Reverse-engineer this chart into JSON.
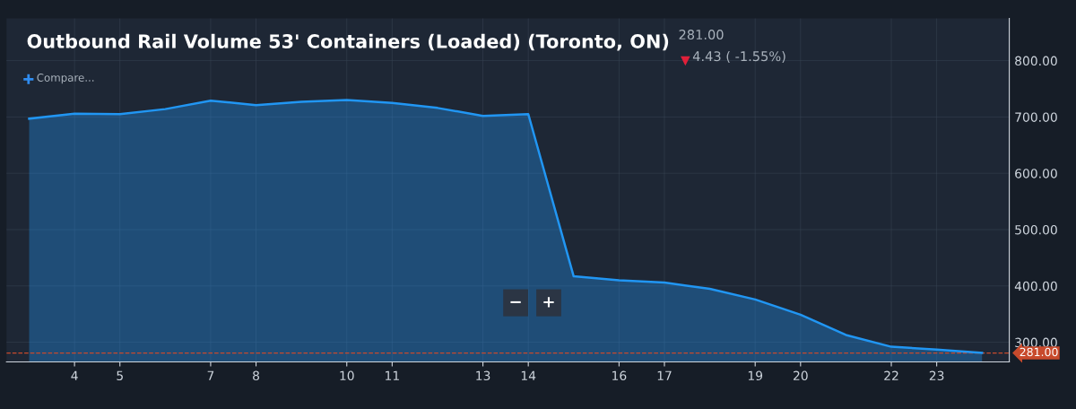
{
  "chart_data": {
    "type": "area",
    "title": "Outbound Rail Volume 53' Containers (Loaded) (Toronto, ON)",
    "annotations": [
      "281.00",
      "4.43 ( -1.55%)",
      "Compare...",
      "−",
      "+"
    ],
    "x": [
      3,
      4,
      5,
      6,
      7,
      8,
      9,
      10,
      11,
      12,
      13,
      14,
      15,
      16,
      17,
      18,
      19,
      20,
      21,
      22,
      23,
      24
    ],
    "series": [
      {
        "color": "#2196f3",
        "values": [
          697,
          706,
          705,
          714,
          729,
          721,
          727,
          730,
          725,
          716,
          702,
          705,
          417,
          410,
          406,
          395,
          376,
          349,
          313,
          292,
          287,
          281
        ]
      }
    ],
    "xlim": [
      2.5,
      24.6
    ],
    "ylim": [
      265,
      875
    ],
    "xticks": [
      4,
      5,
      7,
      8,
      10,
      11,
      13,
      14,
      16,
      17,
      19,
      20,
      22,
      23
    ],
    "yticks": [
      {
        "value": 300,
        "label": "300.00"
      },
      {
        "value": 400,
        "label": "400.00"
      },
      {
        "value": 500,
        "label": "500.00"
      },
      {
        "value": 600,
        "label": "600.00"
      },
      {
        "value": 700,
        "label": "700.00"
      },
      {
        "value": 800,
        "label": "800.00"
      }
    ],
    "ref_lines": [
      {
        "axis": "y",
        "value": 281,
        "label": "281.00",
        "color": "#c84a2c",
        "line_style": "dashed"
      }
    ],
    "grid": true,
    "marker": "none",
    "line_style": "solid"
  }
}
